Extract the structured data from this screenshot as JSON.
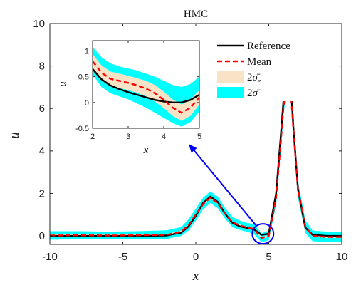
{
  "chart_data": [
    {
      "type": "line",
      "title": "HMC",
      "xlabel": "x",
      "ylabel": "u",
      "xlim": [
        -10,
        10
      ],
      "ylim": [
        -0.4,
        10
      ],
      "xticks": [
        -10,
        -5,
        0,
        5,
        10
      ],
      "yticks": [
        0,
        2,
        4,
        6,
        8,
        10
      ],
      "grid": false,
      "legend_position": "top-right",
      "band_colors": {
        "two_sigma": "#00FFFF",
        "two_sigma_e": "#F9E3C6"
      },
      "series": [
        {
          "name": "Reference",
          "style": "solid",
          "color": "#000000",
          "x": [
            -10,
            -8,
            -6,
            -4,
            -2,
            -1,
            -0.5,
            0,
            0.5,
            1,
            1.5,
            2,
            2.5,
            3,
            3.5,
            4,
            4.5,
            5,
            5.5,
            5.8,
            6,
            6.2,
            6.35,
            6.5,
            6.7,
            7,
            7.5,
            8,
            9,
            10
          ],
          "y": [
            0,
            0,
            0,
            0,
            0.02,
            0.15,
            0.45,
            0.95,
            1.55,
            1.85,
            1.6,
            1.05,
            0.62,
            0.45,
            0.38,
            0.3,
            0.05,
            0.1,
            2.0,
            4.5,
            6.3,
            7.6,
            7.9,
            7.2,
            5.0,
            2.2,
            0.4,
            0.05,
            0,
            0
          ]
        },
        {
          "name": "Mean",
          "style": "dashed",
          "color": "#FF0000",
          "x": [
            -10,
            -8,
            -6,
            -4,
            -2,
            -1,
            -0.5,
            0,
            0.5,
            1,
            1.5,
            2,
            2.5,
            3,
            3.5,
            4,
            4.5,
            5,
            5.5,
            5.8,
            6,
            6.2,
            6.35,
            6.5,
            6.7,
            7,
            7.5,
            8,
            9,
            10
          ],
          "y": [
            0.02,
            0.03,
            0.02,
            0.03,
            0.05,
            0.2,
            0.5,
            1.0,
            1.5,
            1.8,
            1.55,
            1.05,
            0.65,
            0.5,
            0.4,
            0.32,
            -0.1,
            0.0,
            1.8,
            4.2,
            6.0,
            7.2,
            7.4,
            6.9,
            4.9,
            2.2,
            0.45,
            0.0,
            -0.05,
            -0.05
          ]
        }
      ],
      "bands": [
        {
          "name": "2σ̄",
          "x": [
            -10,
            -8,
            -6,
            -4,
            -2,
            -1,
            -0.5,
            0,
            0.5,
            1,
            1.5,
            2,
            2.5,
            3,
            3.5,
            4,
            4.5,
            5,
            5.5,
            5.8,
            6,
            6.2,
            6.35,
            6.5,
            6.7,
            7,
            7.5,
            8,
            9,
            10
          ],
          "lower": [
            -0.18,
            -0.16,
            -0.16,
            -0.16,
            -0.14,
            0.0,
            0.25,
            0.72,
            1.25,
            1.55,
            1.3,
            0.82,
            0.42,
            0.28,
            0.2,
            0.08,
            -0.3,
            -0.2,
            1.45,
            3.8,
            5.6,
            6.8,
            7.0,
            6.5,
            4.5,
            1.8,
            0.15,
            -0.25,
            -0.3,
            -0.3
          ],
          "upper": [
            0.22,
            0.22,
            0.2,
            0.22,
            0.26,
            0.42,
            0.78,
            1.28,
            1.8,
            2.1,
            1.85,
            1.32,
            0.9,
            0.72,
            0.62,
            0.55,
            0.12,
            0.25,
            2.2,
            4.7,
            6.4,
            7.6,
            7.85,
            7.3,
            5.3,
            2.6,
            0.75,
            0.25,
            0.2,
            0.2
          ]
        },
        {
          "name": "2σ̄_e",
          "x": [
            -10,
            -8,
            -6,
            -4,
            -2,
            -1,
            -0.5,
            0,
            0.5,
            1,
            1.5,
            2,
            2.5,
            3,
            3.5,
            4,
            4.5,
            5,
            5.5,
            5.8,
            6,
            6.2,
            6.35,
            6.5,
            6.7,
            7,
            7.5,
            8,
            9,
            10
          ],
          "lower": [
            -0.02,
            -0.01,
            -0.02,
            -0.01,
            0.01,
            0.16,
            0.46,
            0.96,
            1.46,
            1.76,
            1.51,
            1.01,
            0.61,
            0.46,
            0.36,
            0.27,
            -0.14,
            -0.04,
            1.74,
            4.12,
            5.9,
            7.1,
            7.3,
            6.8,
            4.82,
            2.14,
            0.41,
            -0.04,
            -0.09,
            -0.09
          ],
          "upper": [
            0.06,
            0.07,
            0.06,
            0.07,
            0.09,
            0.24,
            0.54,
            1.04,
            1.54,
            1.84,
            1.59,
            1.09,
            0.69,
            0.54,
            0.44,
            0.37,
            -0.06,
            0.04,
            1.86,
            4.28,
            6.1,
            7.3,
            7.5,
            7.0,
            4.98,
            2.26,
            0.49,
            0.04,
            -0.01,
            -0.01
          ]
        }
      ],
      "legend": [
        "Reference",
        "Mean",
        "2σ̄_e",
        "2σ̄"
      ],
      "annotations": [
        {
          "type": "circle",
          "center_x": 4.6,
          "center_y": 0.1
        },
        {
          "type": "arrow",
          "from_x": 4.6,
          "from_y": 0.1,
          "to": "inset"
        }
      ]
    },
    {
      "type": "line",
      "title": "",
      "xlabel": "x",
      "ylabel": "u",
      "xlim": [
        2,
        5
      ],
      "ylim": [
        -0.5,
        1.2
      ],
      "xticks": [
        2,
        3,
        4,
        5
      ],
      "yticks": [
        -0.5,
        0,
        0.5,
        1
      ],
      "grid": false,
      "series": [
        {
          "name": "Reference",
          "style": "solid",
          "color": "#000000",
          "x": [
            2,
            2.25,
            2.5,
            2.75,
            3,
            3.25,
            3.5,
            3.75,
            4,
            4.25,
            4.5,
            4.75,
            5
          ],
          "y": [
            0.65,
            0.45,
            0.33,
            0.26,
            0.2,
            0.15,
            0.1,
            0.05,
            0.02,
            0.0,
            0.0,
            0.05,
            0.15
          ]
        },
        {
          "name": "Mean",
          "style": "dashed",
          "color": "#FF0000",
          "x": [
            2,
            2.25,
            2.5,
            2.75,
            3,
            3.25,
            3.5,
            3.75,
            4,
            4.25,
            4.5,
            4.75,
            5
          ],
          "y": [
            0.8,
            0.58,
            0.46,
            0.42,
            0.38,
            0.33,
            0.27,
            0.18,
            0.05,
            -0.1,
            -0.2,
            -0.1,
            0.1
          ]
        }
      ],
      "bands": [
        {
          "name": "2σ̄",
          "x": [
            2,
            2.25,
            2.5,
            2.75,
            3,
            3.25,
            3.5,
            3.75,
            4,
            4.25,
            4.5,
            4.75,
            5
          ],
          "lower": [
            0.55,
            0.3,
            0.18,
            0.12,
            0.06,
            -0.02,
            -0.1,
            -0.2,
            -0.3,
            -0.4,
            -0.47,
            -0.38,
            -0.18
          ],
          "upper": [
            1.08,
            0.88,
            0.76,
            0.7,
            0.66,
            0.62,
            0.56,
            0.5,
            0.42,
            0.34,
            0.3,
            0.36,
            0.5
          ]
        },
        {
          "name": "2σ̄_e",
          "x": [
            2,
            2.25,
            2.5,
            2.75,
            3,
            3.25,
            3.5,
            3.75,
            4,
            4.25,
            4.5,
            4.75,
            5
          ],
          "lower": [
            0.66,
            0.44,
            0.32,
            0.28,
            0.24,
            0.19,
            0.12,
            0.02,
            -0.11,
            -0.26,
            -0.36,
            -0.26,
            -0.04
          ],
          "upper": [
            0.94,
            0.72,
            0.6,
            0.56,
            0.52,
            0.47,
            0.42,
            0.34,
            0.21,
            0.06,
            -0.04,
            0.06,
            0.24
          ]
        }
      ]
    }
  ]
}
